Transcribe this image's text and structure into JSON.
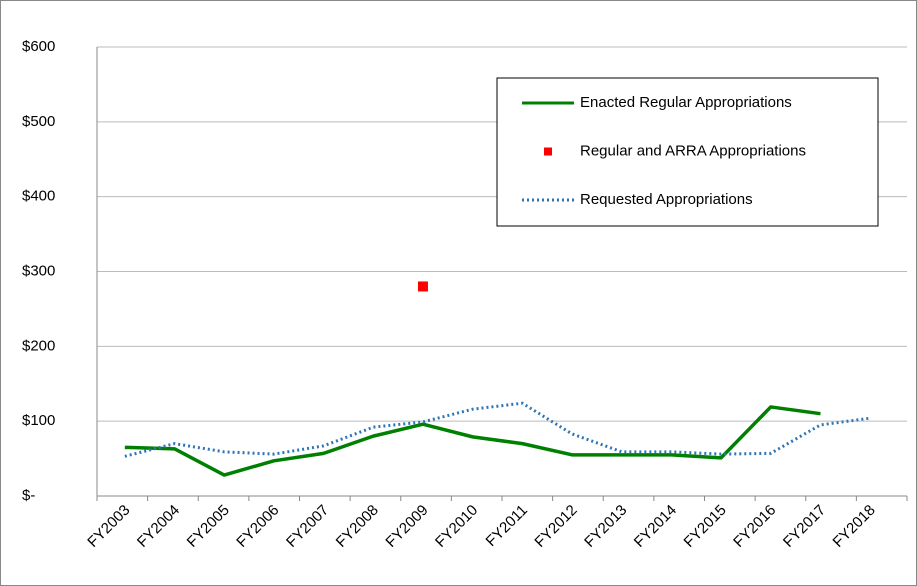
{
  "chart_data": {
    "type": "line",
    "categories": [
      "FY2003",
      "FY2004",
      "FY2005",
      "FY2006",
      "FY2007",
      "FY2008",
      "FY2009",
      "FY2010",
      "FY2011",
      "FY2012",
      "FY2013",
      "FY2014",
      "FY2015",
      "FY2016",
      "FY2017",
      "FY2018"
    ],
    "series": [
      {
        "name": "Enacted Regular Appropriations",
        "color": "#008000",
        "line_style": "solid",
        "values": [
          65,
          63,
          28,
          47,
          57,
          80,
          96,
          79,
          70,
          55,
          55,
          55,
          51,
          119,
          110,
          null
        ]
      },
      {
        "name": "Regular and ARRA Appropriations",
        "color": "#ff0000",
        "marker": "square",
        "values": [
          null,
          null,
          null,
          null,
          null,
          null,
          280,
          null,
          null,
          null,
          null,
          null,
          null,
          null,
          null,
          null
        ]
      },
      {
        "name": "Requested Appropriations",
        "color": "#2e75b6",
        "line_style": "dotted",
        "values": [
          53,
          70,
          59,
          56,
          67,
          92,
          99,
          116,
          124,
          83,
          59,
          59,
          56,
          57,
          95,
          104
        ]
      }
    ],
    "ylim": [
      0,
      600
    ],
    "yticks": [
      {
        "value": 0,
        "label": "$-"
      },
      {
        "value": 100,
        "label": "$100"
      },
      {
        "value": 200,
        "label": "$200"
      },
      {
        "value": 300,
        "label": "$300"
      },
      {
        "value": 400,
        "label": "$400"
      },
      {
        "value": 500,
        "label": "$500"
      },
      {
        "value": 600,
        "label": "$600"
      }
    ],
    "grid": true,
    "legend": "upper right"
  }
}
